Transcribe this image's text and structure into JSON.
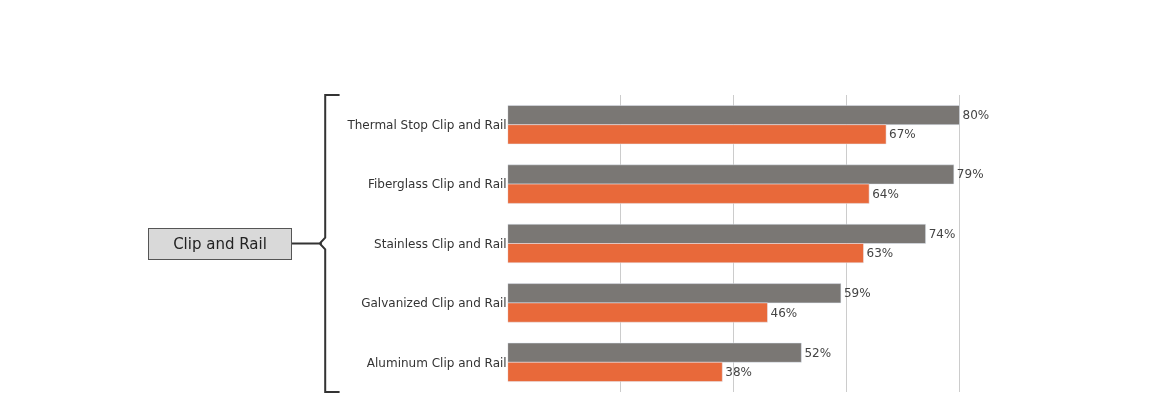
{
  "chart_data": {
    "type": "bar",
    "orientation": "horizontal",
    "categories": [
      "Thermal Stop Clip and Rail",
      "Fiberglass Clip and Rail",
      "Stainless Clip and Rail",
      "Galvanized Clip and Rail",
      "Aluminum Clip and Rail"
    ],
    "series": [
      {
        "color": "#7a7774",
        "values": [
          80,
          79,
          74,
          59,
          52
        ],
        "value_labels": [
          "80%",
          "79%",
          "74%",
          "59%",
          "52%"
        ]
      },
      {
        "color": "#e8693a",
        "values": [
          67,
          64,
          63,
          46,
          38
        ],
        "value_labels": [
          "67%",
          "64%",
          "63%",
          "46%",
          "38%"
        ]
      }
    ],
    "grid": "x",
    "tick_labels": "y",
    "annotations": [
      "Clip and Rail"
    ]
  }
}
